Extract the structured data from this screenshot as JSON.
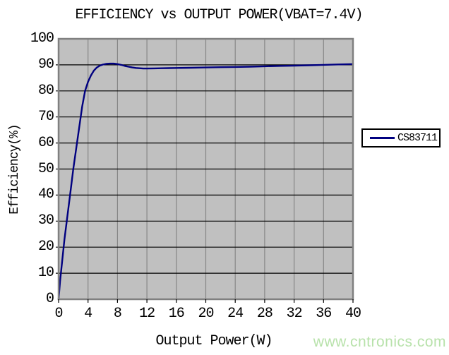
{
  "title": "EFFICIENCY vs OUTPUT POWER(VBAT=7.4V)",
  "watermark": "www.cntronics.com",
  "colors": {
    "plot_background": "#c0c0c0",
    "horizontal_gridline": "#000000",
    "vertical_gridline": "#868686",
    "plot_border": "#808080",
    "series_line": "#000080",
    "tick_mark": "#000000",
    "watermark_text": "#b8e2ab",
    "text": "#000000"
  },
  "chart_data": {
    "type": "line",
    "title": "EFFICIENCY vs OUTPUT POWER(VBAT=7.4V)",
    "xlabel": "Output Power(W)",
    "ylabel": "Efficiency(%)",
    "xlim": [
      0,
      40
    ],
    "ylim": [
      0,
      100
    ],
    "x_ticks": [
      0,
      4,
      8,
      12,
      16,
      20,
      24,
      28,
      32,
      36,
      40
    ],
    "y_ticks": [
      0,
      10,
      20,
      30,
      40,
      50,
      60,
      70,
      80,
      90,
      100
    ],
    "grid": true,
    "legend_position": "right",
    "series": [
      {
        "name": "CS83711",
        "color": "#000080",
        "x": [
          0,
          0.2,
          0.5,
          0.8,
          1.2,
          1.6,
          2.0,
          2.4,
          2.8,
          3.2,
          3.6,
          4.0,
          4.4,
          4.8,
          5.2,
          5.6,
          6.0,
          6.5,
          7.0,
          7.5,
          8.0,
          8.5,
          9.0,
          9.5,
          10,
          10.5,
          11,
          11.5,
          12,
          13,
          14,
          15,
          16,
          18,
          20,
          22,
          24,
          26,
          28,
          30,
          32,
          34,
          36,
          38,
          40
        ],
        "y": [
          0,
          7,
          15,
          23,
          32,
          41,
          50,
          58,
          66,
          74,
          80,
          83.5,
          86,
          87.8,
          89,
          89.7,
          90.1,
          90.4,
          90.5,
          90.5,
          90.3,
          90.0,
          89.6,
          89.3,
          89.0,
          88.8,
          88.7,
          88.6,
          88.6,
          88.65,
          88.7,
          88.75,
          88.8,
          88.9,
          89.0,
          89.1,
          89.2,
          89.3,
          89.45,
          89.6,
          89.7,
          89.85,
          90.0,
          90.15,
          90.3
        ]
      }
    ]
  }
}
